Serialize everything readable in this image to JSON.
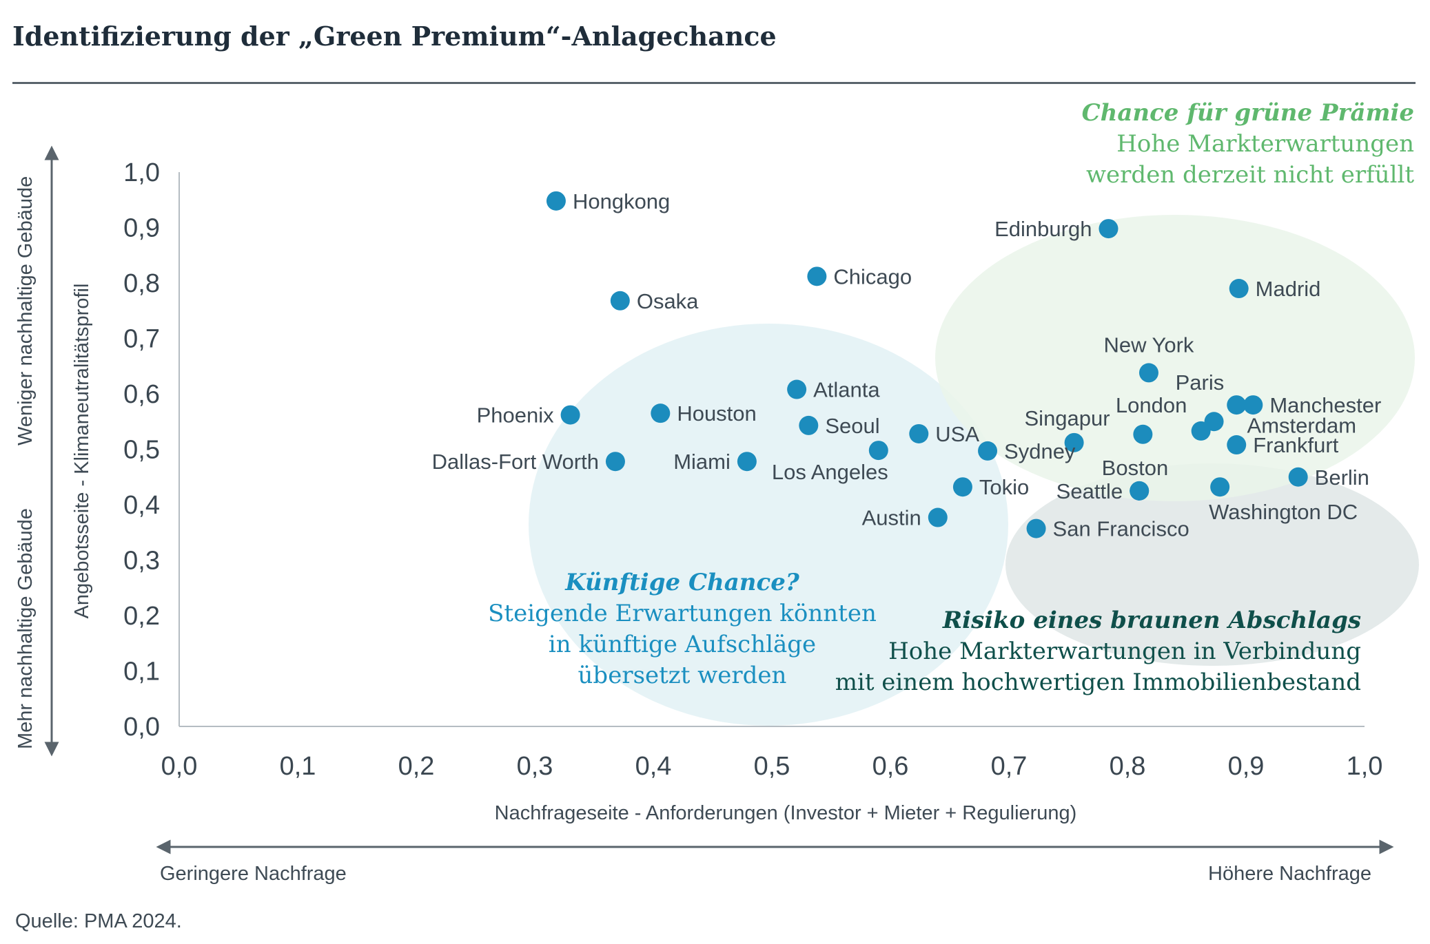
{
  "title": "Identifizierung der „Green Premium“-Anlagechance",
  "source": "Quelle: PMA 2024.",
  "chart_data": {
    "type": "scatter",
    "xlabel": "Nachfrageseite - Anforderungen (Investor + Mieter + Regulierung)",
    "ylabel": "Angebotsseite - Klimaneutralitätsprofil",
    "xlim": [
      0,
      1
    ],
    "ylim": [
      0,
      1
    ],
    "x_ticks": [
      "0,0",
      "0,1",
      "0,2",
      "0,3",
      "0,4",
      "0,5",
      "0,6",
      "0,7",
      "0,8",
      "0,9",
      "1,0"
    ],
    "y_ticks": [
      "0,0",
      "0,1",
      "0,2",
      "0,3",
      "0,4",
      "0,5",
      "0,6",
      "0,7",
      "0,8",
      "0,9",
      "1,0"
    ],
    "x_arrow_left": "Geringere Nachfrage",
    "x_arrow_right": "Höhere Nachfrage",
    "y_arrow_top": "Weniger nachhaltige Gebäude",
    "y_arrow_bottom": "Mehr nachhaltige Gebäude",
    "zones": [
      {
        "title": "Chance für grüne Prämie",
        "lines": [
          "Hohe Markterwartungen",
          "werden derzeit nicht erfüllt"
        ],
        "color": "#5fb86e",
        "fill": "#eaf4ea"
      },
      {
        "title": "Künftige Chance?",
        "lines": [
          "Steigende Erwartungen könnten",
          "in künftige Aufschläge",
          "übersetzt werden"
        ],
        "color": "#1a8fc0",
        "fill": "#e2f1f4"
      },
      {
        "title": "Risiko eines braunen Abschlags",
        "lines": [
          "Hohe Markterwartungen in Verbindung",
          "mit einem hochwertigen Immobilienbestand"
        ],
        "color": "#0f4f4a",
        "fill": "#dfe6e6"
      }
    ],
    "points": [
      {
        "name": "Hongkong",
        "x": 0.318,
        "y": 0.948,
        "label_side": "right"
      },
      {
        "name": "Osaka",
        "x": 0.372,
        "y": 0.768,
        "label_side": "right"
      },
      {
        "name": "Chicago",
        "x": 0.538,
        "y": 0.812,
        "label_side": "right"
      },
      {
        "name": "Edinburgh",
        "x": 0.784,
        "y": 0.898,
        "label_side": "left"
      },
      {
        "name": "Madrid",
        "x": 0.894,
        "y": 0.79,
        "label_side": "right"
      },
      {
        "name": "New York",
        "x": 0.818,
        "y": 0.638,
        "label_side": "above"
      },
      {
        "name": "Atlanta",
        "x": 0.521,
        "y": 0.608,
        "label_side": "right"
      },
      {
        "name": "Phoenix",
        "x": 0.33,
        "y": 0.562,
        "label_side": "left"
      },
      {
        "name": "Houston",
        "x": 0.406,
        "y": 0.565,
        "label_side": "right"
      },
      {
        "name": "Seoul",
        "x": 0.531,
        "y": 0.543,
        "label_side": "right"
      },
      {
        "name": "USA",
        "x": 0.624,
        "y": 0.528,
        "label_side": "right"
      },
      {
        "name": "Paris",
        "x": 0.892,
        "y": 0.58,
        "label_side": "above-left"
      },
      {
        "name": "Manchester",
        "x": 0.906,
        "y": 0.58,
        "label_side": "right"
      },
      {
        "name": "Singapur",
        "x": 0.755,
        "y": 0.512,
        "label_side": "above-left"
      },
      {
        "name": "London",
        "x": 0.813,
        "y": 0.527,
        "label_side": "above-right"
      },
      {
        "name": "Amsterdam",
        "x": 0.873,
        "y": 0.55,
        "label_side": "right"
      },
      {
        "name": "Frankfurt",
        "x": 0.892,
        "y": 0.508,
        "label_side": "right"
      },
      {
        "name": "Dallas-Fort Worth",
        "x": 0.368,
        "y": 0.478,
        "label_side": "left"
      },
      {
        "name": "Miami",
        "x": 0.479,
        "y": 0.478,
        "label_side": "left"
      },
      {
        "name": "Los Angeles",
        "x": 0.59,
        "y": 0.498,
        "label_side": "below-left"
      },
      {
        "name": "Sydney",
        "x": 0.682,
        "y": 0.497,
        "label_side": "right"
      },
      {
        "name": "Boston",
        "x": 0.81,
        "y": 0.425,
        "label_side": "above-right"
      },
      {
        "name": "Seattle",
        "x": 0.81,
        "y": 0.425,
        "label_side": "left"
      },
      {
        "name": "Washington DC",
        "x": 0.878,
        "y": 0.432,
        "label_side": "below"
      },
      {
        "name": "Berlin",
        "x": 0.944,
        "y": 0.45,
        "label_side": "right"
      },
      {
        "name": "Tokio",
        "x": 0.661,
        "y": 0.432,
        "label_side": "right"
      },
      {
        "name": "Austin",
        "x": 0.64,
        "y": 0.377,
        "label_side": "left"
      },
      {
        "name": "San Francisco",
        "x": 0.723,
        "y": 0.357,
        "label_side": "right"
      },
      {
        "name": "",
        "x": 0.862,
        "y": 0.533,
        "label_side": "none"
      }
    ],
    "point_color": "#1c8cbd"
  }
}
